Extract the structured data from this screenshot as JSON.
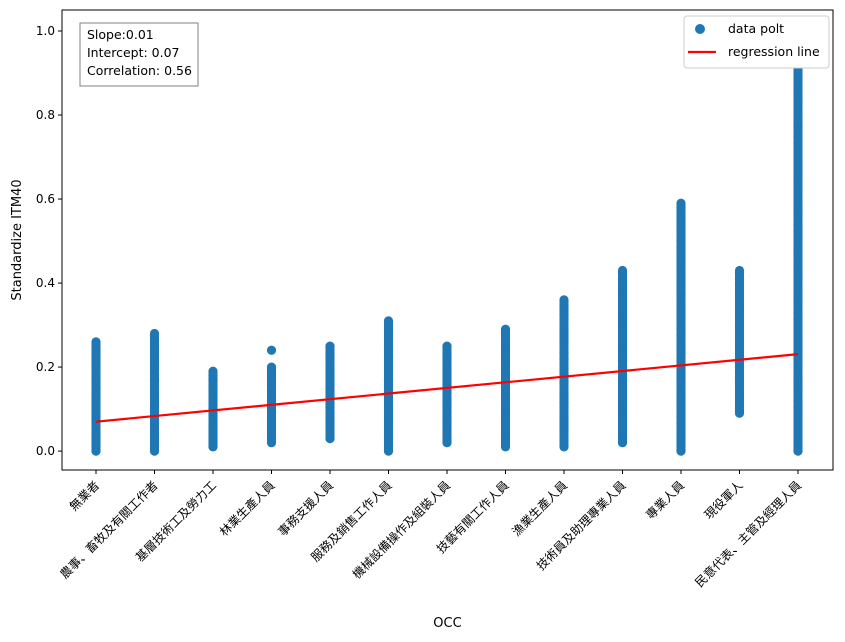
{
  "chart_data": {
    "type": "scatter",
    "title": "",
    "xlabel": "OCC",
    "ylabel": "Standardize ITM40",
    "ylim": [
      -0.045,
      1.05
    ],
    "yticks": [
      0.0,
      0.2,
      0.4,
      0.6,
      0.8,
      1.0
    ],
    "ytick_labels": [
      "0.0",
      "0.2",
      "0.4",
      "0.6",
      "0.8",
      "1.0"
    ],
    "categories": [
      "無業者",
      "農事、畜牧及有關工作者",
      "基層技術工及勞力工",
      "林業生產人員",
      "事務支援人員",
      "服務及銷售工作人員",
      "機械設備操作及組裝人員",
      "技藝有關工作人員",
      "漁業生產人員",
      "技術員及助理專業人員",
      "專業人員",
      "現役軍人",
      "民意代表、主管及經理人員"
    ],
    "series": [
      {
        "name": "data polt",
        "color": "#1f77b4",
        "ranges": [
          {
            "category": "無業者",
            "min": 0.0,
            "max": 0.26
          },
          {
            "category": "農事、畜牧及有關工作者",
            "min": 0.0,
            "max": 0.28
          },
          {
            "category": "基層技術工及勞力工",
            "min": 0.01,
            "max": 0.19
          },
          {
            "category": "林業生產人員",
            "min": 0.02,
            "max": 0.2,
            "outliers": [
              0.24
            ]
          },
          {
            "category": "事務支援人員",
            "min": 0.03,
            "max": 0.25
          },
          {
            "category": "服務及銷售工作人員",
            "min": 0.0,
            "max": 0.31
          },
          {
            "category": "機械設備操作及組裝人員",
            "min": 0.02,
            "max": 0.25
          },
          {
            "category": "技藝有關工作人員",
            "min": 0.01,
            "max": 0.29
          },
          {
            "category": "漁業生產人員",
            "min": 0.01,
            "max": 0.36
          },
          {
            "category": "技術員及助理專業人員",
            "min": 0.02,
            "max": 0.43
          },
          {
            "category": "專業人員",
            "min": 0.0,
            "max": 0.59
          },
          {
            "category": "現役軍人",
            "min": 0.09,
            "max": 0.43
          },
          {
            "category": "民意代表、主管及經理人員",
            "min": 0.0,
            "max": 1.0
          }
        ]
      },
      {
        "name": "regression line",
        "color": "#ff0000",
        "slope": 0.0134,
        "intercept": 0.07
      }
    ],
    "annotation": [
      "Slope:0.01",
      "Intercept: 0.07",
      "Correlation: 0.56"
    ],
    "legend": {
      "position": "top-right",
      "entries": [
        "data polt",
        "regression line"
      ]
    },
    "grid": false
  }
}
